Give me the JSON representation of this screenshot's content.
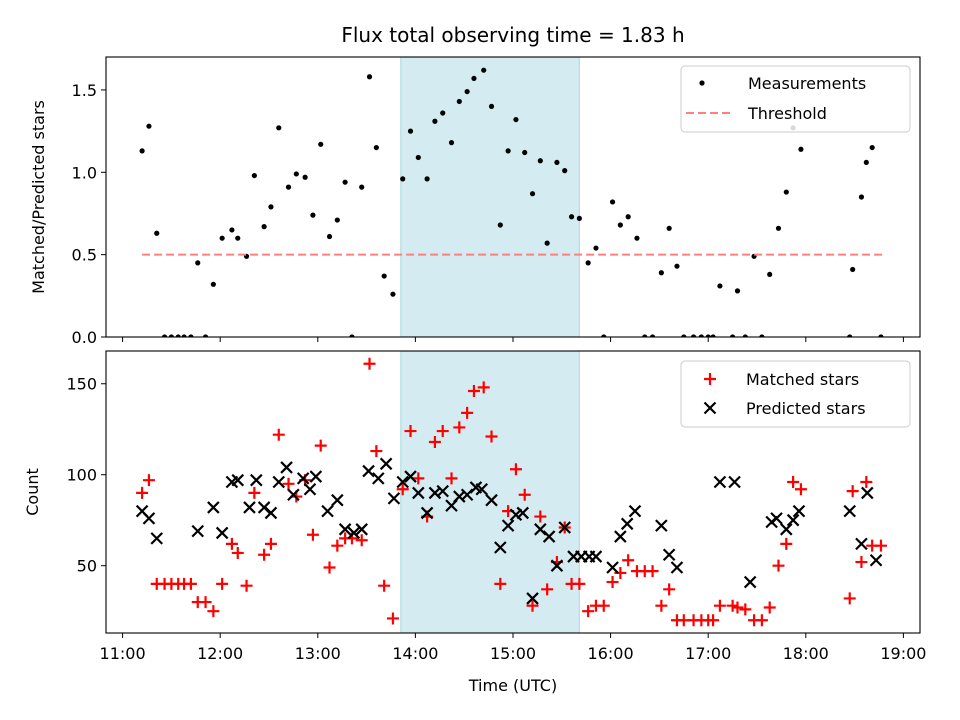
{
  "chart_data": {
    "type": "scatter",
    "title": "Flux total observing time = 1.83 h",
    "xlabel": "Time (UTC)",
    "xlim": [
      10.83,
      19.17
    ],
    "xticks": [
      11,
      12,
      13,
      14,
      15,
      16,
      17,
      18,
      19
    ],
    "xtick_labels": [
      "11:00",
      "12:00",
      "13:00",
      "14:00",
      "15:00",
      "16:00",
      "17:00",
      "18:00",
      "19:00"
    ],
    "highlight_span": {
      "x0": 13.85,
      "x1": 15.68,
      "color": "#add8e6"
    },
    "panels": [
      {
        "ylabel": "Matched/Predicted stars",
        "ylim": [
          0,
          1.7
        ],
        "yticks": [
          0,
          0.5,
          1.0,
          1.5
        ],
        "ytick_labels": [
          "0.0",
          "0.5",
          "1.0",
          "1.5"
        ],
        "legend_position": "top-right",
        "series": [
          {
            "name": "Measurements",
            "kind": "points",
            "color": "#000000",
            "x": [
              11.2,
              11.27,
              11.35,
              11.43,
              11.5,
              11.57,
              11.63,
              11.7,
              11.77,
              11.85,
              11.93,
              12.02,
              12.12,
              12.18,
              12.27,
              12.35,
              12.45,
              12.52,
              12.6,
              12.7,
              12.78,
              12.87,
              12.95,
              13.03,
              13.12,
              13.2,
              13.28,
              13.35,
              13.45,
              13.53,
              13.6,
              13.68,
              13.77,
              13.87,
              13.95,
              14.03,
              14.12,
              14.2,
              14.28,
              14.37,
              14.45,
              14.53,
              14.6,
              14.7,
              14.78,
              14.87,
              14.95,
              15.03,
              15.12,
              15.2,
              15.28,
              15.35,
              15.45,
              15.53,
              15.6,
              15.68,
              15.77,
              15.85,
              15.93,
              16.02,
              16.1,
              16.18,
              16.27,
              16.35,
              16.43,
              16.52,
              16.6,
              16.68,
              16.75,
              16.85,
              16.93,
              17.0,
              17.05,
              17.12,
              17.25,
              17.3,
              17.38,
              17.47,
              17.55,
              17.63,
              17.72,
              17.8,
              17.87,
              17.95,
              18.45,
              18.48,
              18.57,
              18.62,
              18.68,
              18.77
            ],
            "y": [
              1.13,
              1.28,
              0.63,
              0.0,
              0.0,
              0.0,
              0.0,
              0.0,
              0.45,
              0.0,
              0.32,
              0.6,
              0.65,
              0.6,
              0.49,
              0.98,
              0.67,
              0.79,
              1.27,
              0.91,
              0.99,
              0.97,
              0.74,
              1.17,
              0.61,
              0.71,
              0.94,
              0.0,
              0.91,
              1.58,
              1.15,
              0.37,
              0.26,
              0.96,
              1.25,
              1.09,
              0.96,
              1.31,
              1.36,
              1.18,
              1.43,
              1.49,
              1.57,
              1.62,
              1.4,
              0.68,
              1.13,
              1.32,
              1.12,
              0.87,
              1.07,
              0.57,
              1.06,
              1.01,
              0.73,
              0.72,
              0.45,
              0.54,
              0.0,
              0.82,
              0.68,
              0.73,
              0.6,
              0.0,
              0.0,
              0.39,
              0.66,
              0.43,
              0.0,
              0.0,
              0.0,
              0.0,
              0.0,
              0.31,
              0.0,
              0.28,
              0.0,
              0.49,
              0.0,
              0.38,
              0.66,
              0.88,
              1.27,
              1.14,
              0.0,
              0.41,
              0.85,
              1.06,
              1.15,
              0.0
            ]
          },
          {
            "name": "Threshold",
            "kind": "dashed-line",
            "color": "#ff7f7f",
            "x": [
              11.2,
              18.8
            ],
            "y": [
              0.5,
              0.5
            ]
          }
        ]
      },
      {
        "ylabel": "Count",
        "ylim": [
          13,
          168
        ],
        "yticks": [
          50,
          100,
          150
        ],
        "ytick_labels": [
          "50",
          "100",
          "150"
        ],
        "legend_position": "top-right",
        "series": [
          {
            "name": "Matched stars",
            "kind": "plus",
            "color": "#ff0000",
            "x": [
              11.2,
              11.27,
              11.35,
              11.43,
              11.5,
              11.57,
              11.63,
              11.7,
              11.77,
              11.85,
              11.93,
              12.02,
              12.12,
              12.18,
              12.27,
              12.35,
              12.45,
              12.52,
              12.6,
              12.7,
              12.78,
              12.87,
              12.95,
              13.03,
              13.12,
              13.2,
              13.28,
              13.35,
              13.45,
              13.53,
              13.6,
              13.68,
              13.77,
              13.87,
              13.95,
              14.03,
              14.12,
              14.2,
              14.28,
              14.37,
              14.45,
              14.53,
              14.6,
              14.7,
              14.78,
              14.87,
              14.95,
              15.03,
              15.12,
              15.2,
              15.28,
              15.35,
              15.45,
              15.53,
              15.6,
              15.68,
              15.77,
              15.85,
              15.93,
              16.02,
              16.1,
              16.18,
              16.27,
              16.35,
              16.43,
              16.52,
              16.6,
              16.68,
              16.75,
              16.85,
              16.93,
              17.0,
              17.05,
              17.12,
              17.25,
              17.3,
              17.38,
              17.47,
              17.55,
              17.63,
              17.72,
              17.8,
              17.87,
              17.95,
              18.45,
              18.48,
              18.57,
              18.62,
              18.68,
              18.77
            ],
            "y": [
              90,
              97,
              40,
              40,
              40,
              40,
              40,
              40,
              30,
              30,
              25,
              40,
              62,
              57,
              39,
              90,
              56,
              62,
              122,
              95,
              88,
              97,
              67,
              116,
              49,
              61,
              65,
              65,
              64,
              161,
              113,
              39,
              21,
              92,
              124,
              98,
              77,
              118,
              124,
              98,
              126,
              134,
              146,
              148,
              121,
              40,
              80,
              103,
              89,
              28,
              77,
              37,
              52,
              71,
              40,
              40,
              25,
              28,
              28,
              41,
              46,
              53,
              47,
              47,
              47,
              28,
              37,
              20,
              20,
              20,
              20,
              20,
              20,
              28,
              28,
              27,
              26,
              20,
              20,
              27,
              50,
              62,
              96,
              92,
              32,
              91,
              52,
              96,
              61,
              61
            ]
          },
          {
            "name": "Predicted stars",
            "kind": "x",
            "color": "#000000",
            "x": [
              11.2,
              11.27,
              11.35,
              11.77,
              11.93,
              12.02,
              12.12,
              12.18,
              12.3,
              12.37,
              12.45,
              12.52,
              12.6,
              12.68,
              12.75,
              12.85,
              12.92,
              12.98,
              13.1,
              13.2,
              13.28,
              13.37,
              13.45,
              13.52,
              13.62,
              13.7,
              13.78,
              13.87,
              13.95,
              14.03,
              14.12,
              14.2,
              14.28,
              14.37,
              14.45,
              14.53,
              14.62,
              14.68,
              14.78,
              14.87,
              14.95,
              15.03,
              15.1,
              15.2,
              15.28,
              15.37,
              15.45,
              15.53,
              15.62,
              15.7,
              15.78,
              15.85,
              16.02,
              16.1,
              16.17,
              16.25,
              16.52,
              16.6,
              16.68,
              17.12,
              17.27,
              17.43,
              17.65,
              17.7,
              17.8,
              17.87,
              17.93,
              18.45,
              18.57,
              18.63,
              18.72
            ],
            "y": [
              80,
              76,
              65,
              69,
              82,
              68,
              96,
              97,
              82,
              97,
              82,
              79,
              96,
              104,
              89,
              98,
              92,
              99,
              80,
              86,
              70,
              68,
              70,
              102,
              98,
              106,
              87,
              96,
              99,
              90,
              79,
              90,
              91,
              83,
              88,
              89,
              93,
              92,
              86,
              60,
              72,
              78,
              79,
              32,
              70,
              66,
              50,
              71,
              55,
              55,
              55,
              55,
              49,
              66,
              73,
              80,
              72,
              56,
              49,
              96,
              96,
              41,
              74,
              76,
              70,
              75,
              80,
              80,
              62,
              90,
              53
            ]
          }
        ]
      }
    ]
  }
}
